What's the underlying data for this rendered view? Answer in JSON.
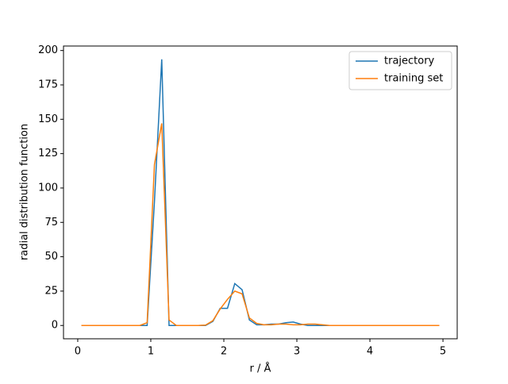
{
  "chart_data": {
    "type": "line",
    "xlabel": "r / Å",
    "ylabel": "radial distribution function",
    "x": [
      0.05,
      0.15,
      0.25,
      0.35,
      0.45,
      0.55,
      0.65,
      0.75,
      0.85,
      0.95,
      1.05,
      1.15,
      1.25,
      1.35,
      1.45,
      1.55,
      1.65,
      1.75,
      1.85,
      1.95,
      2.05,
      2.15,
      2.25,
      2.35,
      2.45,
      2.55,
      2.65,
      2.75,
      2.85,
      2.95,
      3.05,
      3.15,
      3.25,
      3.35,
      3.45,
      3.55,
      3.65,
      3.75,
      3.85,
      3.95,
      4.05,
      4.15,
      4.25,
      4.35,
      4.45,
      4.55,
      4.65,
      4.75,
      4.85,
      4.95
    ],
    "series": [
      {
        "name": "trajectory",
        "color": "#1f77b4",
        "values": [
          0,
          0,
          0,
          0,
          0,
          0,
          0,
          0,
          0,
          0,
          90,
          193.6,
          0,
          0,
          0,
          0,
          0,
          0,
          3,
          12.5,
          12.5,
          30.5,
          26,
          4,
          0.5,
          0.5,
          1,
          1,
          2,
          2.5,
          1,
          0,
          0,
          0,
          0,
          0,
          0,
          0,
          0,
          0,
          0,
          0,
          0,
          0,
          0,
          0,
          0,
          0,
          0,
          0
        ]
      },
      {
        "name": "training set",
        "color": "#ff7f0e",
        "values": [
          0,
          0,
          0,
          0,
          0,
          0,
          0,
          0,
          0,
          2,
          117,
          147,
          4,
          0,
          0,
          0,
          0,
          0.3,
          3.5,
          12,
          19,
          25,
          23,
          5.5,
          1.5,
          0.5,
          0.5,
          1,
          1,
          0.5,
          0.5,
          1,
          1,
          0.5,
          0,
          0,
          0,
          0,
          0,
          0,
          0,
          0,
          0,
          0,
          0,
          0,
          0,
          0,
          0,
          0
        ]
      }
    ],
    "xlim": [
      -0.195,
      5.195
    ],
    "xticks": [
      0,
      1,
      2,
      3,
      4,
      5
    ],
    "ylim": [
      -9.68,
      203.28
    ],
    "yticks": [
      0,
      25,
      50,
      75,
      100,
      125,
      150,
      175,
      200
    ],
    "legend": "upper right"
  }
}
